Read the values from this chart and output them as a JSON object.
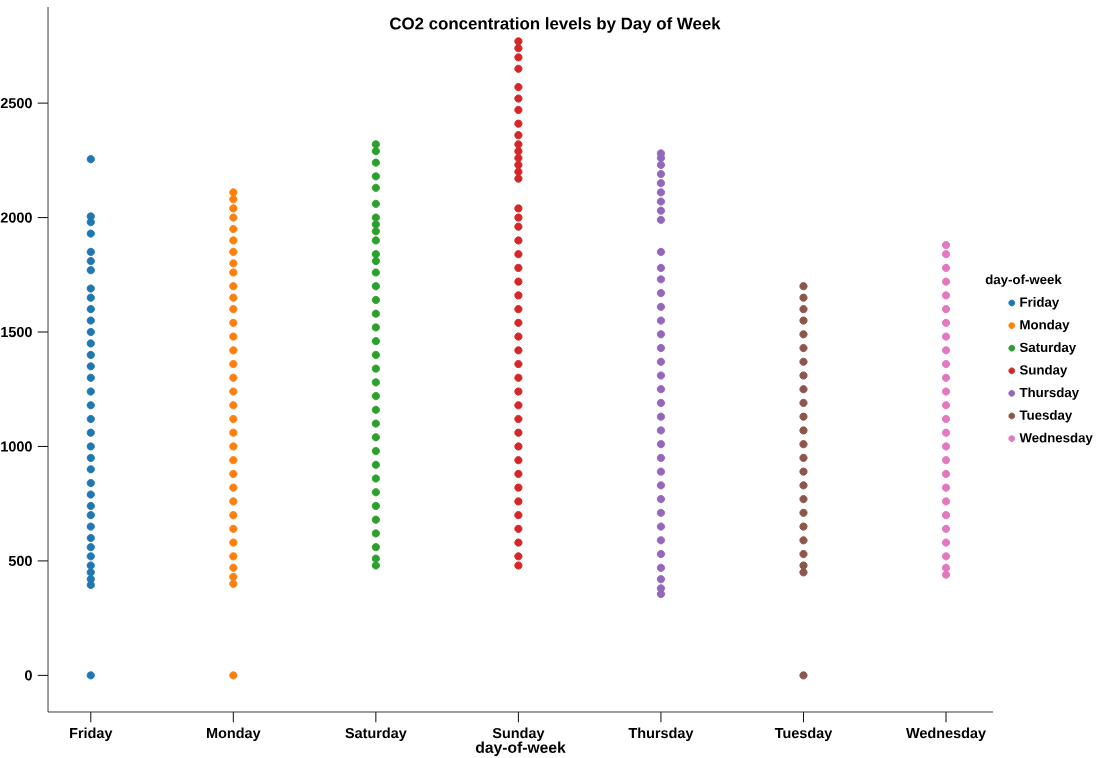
{
  "chart_data": {
    "type": "scatter",
    "title": "CO2 concentration levels by Day of Week",
    "xlabel": "day-of-week",
    "legend_title": "day-of-week",
    "categories": [
      "Friday",
      "Monday",
      "Saturday",
      "Sunday",
      "Thursday",
      "Tuesday",
      "Wednesday"
    ],
    "ylim": [
      -160,
      2920
    ],
    "yticks": [
      0,
      500,
      1000,
      1500,
      2000,
      2500
    ],
    "grid": false,
    "legend": "right",
    "marker": "circle",
    "series": [
      {
        "name": "Friday",
        "color": "#1f77b4",
        "x": [
          "Friday",
          "Friday",
          "Friday",
          "Friday",
          "Friday",
          "Friday",
          "Friday",
          "Friday",
          "Friday",
          "Friday",
          "Friday",
          "Friday",
          "Friday",
          "Friday",
          "Friday",
          "Friday",
          "Friday",
          "Friday",
          "Friday",
          "Friday",
          "Friday",
          "Friday",
          "Friday",
          "Friday",
          "Friday",
          "Friday",
          "Friday",
          "Friday",
          "Friday",
          "Friday",
          "Friday",
          "Friday",
          "Friday",
          "Friday",
          "Friday",
          "Friday"
        ],
        "values": [
          0,
          395,
          420,
          450,
          480,
          520,
          560,
          600,
          650,
          700,
          740,
          790,
          840,
          900,
          950,
          1000,
          1060,
          1120,
          1180,
          1240,
          1300,
          1350,
          1400,
          1450,
          1500,
          1550,
          1600,
          1650,
          1690,
          1770,
          1810,
          1850,
          1930,
          1980,
          2005,
          2255
        ]
      },
      {
        "name": "Monday",
        "color": "#ff7f0e",
        "x": [
          "Monday",
          "Monday",
          "Monday",
          "Monday",
          "Monday",
          "Monday",
          "Monday",
          "Monday",
          "Monday",
          "Monday",
          "Monday",
          "Monday",
          "Monday",
          "Monday",
          "Monday",
          "Monday",
          "Monday",
          "Monday",
          "Monday",
          "Monday",
          "Monday",
          "Monday",
          "Monday",
          "Monday",
          "Monday",
          "Monday",
          "Monday",
          "Monday",
          "Monday",
          "Monday",
          "Monday",
          "Monday",
          "Monday",
          "Monday"
        ],
        "values": [
          0,
          400,
          430,
          470,
          520,
          580,
          640,
          700,
          760,
          820,
          880,
          940,
          1000,
          1060,
          1120,
          1180,
          1240,
          1300,
          1360,
          1420,
          1480,
          1540,
          1600,
          1650,
          1700,
          1760,
          1800,
          1850,
          1900,
          1950,
          2000,
          2040,
          2080,
          2110
        ]
      },
      {
        "name": "Saturday",
        "color": "#2ca02c",
        "x": [
          "Saturday",
          "Saturday",
          "Saturday",
          "Saturday",
          "Saturday",
          "Saturday",
          "Saturday",
          "Saturday",
          "Saturday",
          "Saturday",
          "Saturday",
          "Saturday",
          "Saturday",
          "Saturday",
          "Saturday",
          "Saturday",
          "Saturday",
          "Saturday",
          "Saturday",
          "Saturday",
          "Saturday",
          "Saturday",
          "Saturday",
          "Saturday",
          "Saturday",
          "Saturday",
          "Saturday",
          "Saturday",
          "Saturday",
          "Saturday",
          "Saturday",
          "Saturday",
          "Saturday",
          "Saturday",
          "Saturday"
        ],
        "values": [
          480,
          510,
          560,
          620,
          680,
          740,
          800,
          860,
          920,
          980,
          1040,
          1100,
          1160,
          1220,
          1280,
          1340,
          1400,
          1460,
          1520,
          1580,
          1640,
          1700,
          1760,
          1810,
          1840,
          1900,
          1940,
          1970,
          2000,
          2060,
          2130,
          2180,
          2240,
          2290,
          2320
        ]
      },
      {
        "name": "Sunday",
        "color": "#d62728",
        "x": [
          "Sunday",
          "Sunday",
          "Sunday",
          "Sunday",
          "Sunday",
          "Sunday",
          "Sunday",
          "Sunday",
          "Sunday",
          "Sunday",
          "Sunday",
          "Sunday",
          "Sunday",
          "Sunday",
          "Sunday",
          "Sunday",
          "Sunday",
          "Sunday",
          "Sunday",
          "Sunday",
          "Sunday",
          "Sunday",
          "Sunday",
          "Sunday",
          "Sunday",
          "Sunday",
          "Sunday",
          "Sunday",
          "Sunday",
          "Sunday",
          "Sunday",
          "Sunday",
          "Sunday",
          "Sunday",
          "Sunday",
          "Sunday",
          "Sunday",
          "Sunday",
          "Sunday",
          "Sunday",
          "Sunday",
          "Sunday",
          "Sunday"
        ],
        "values": [
          480,
          520,
          580,
          640,
          700,
          760,
          820,
          880,
          940,
          1000,
          1060,
          1120,
          1180,
          1240,
          1300,
          1360,
          1420,
          1480,
          1540,
          1600,
          1660,
          1720,
          1780,
          1840,
          1900,
          1960,
          2000,
          2040,
          2170,
          2200,
          2230,
          2260,
          2290,
          2320,
          2360,
          2410,
          2470,
          2520,
          2570,
          2650,
          2700,
          2740,
          2770
        ]
      },
      {
        "name": "Thursday",
        "color": "#9467bd",
        "x": [
          "Thursday",
          "Thursday",
          "Thursday",
          "Thursday",
          "Thursday",
          "Thursday",
          "Thursday",
          "Thursday",
          "Thursday",
          "Thursday",
          "Thursday",
          "Thursday",
          "Thursday",
          "Thursday",
          "Thursday",
          "Thursday",
          "Thursday",
          "Thursday",
          "Thursday",
          "Thursday",
          "Thursday",
          "Thursday",
          "Thursday",
          "Thursday",
          "Thursday",
          "Thursday",
          "Thursday",
          "Thursday",
          "Thursday",
          "Thursday",
          "Thursday",
          "Thursday",
          "Thursday",
          "Thursday",
          "Thursday",
          "Thursday"
        ],
        "values": [
          355,
          380,
          420,
          470,
          530,
          590,
          650,
          710,
          770,
          830,
          890,
          950,
          1010,
          1070,
          1130,
          1190,
          1250,
          1310,
          1370,
          1430,
          1490,
          1550,
          1610,
          1670,
          1730,
          1780,
          1850,
          1990,
          2030,
          2070,
          2110,
          2150,
          2190,
          2230,
          2260,
          2280
        ]
      },
      {
        "name": "Tuesday",
        "color": "#8c564b",
        "x": [
          "Tuesday",
          "Tuesday",
          "Tuesday",
          "Tuesday",
          "Tuesday",
          "Tuesday",
          "Tuesday",
          "Tuesday",
          "Tuesday",
          "Tuesday",
          "Tuesday",
          "Tuesday",
          "Tuesday",
          "Tuesday",
          "Tuesday",
          "Tuesday",
          "Tuesday",
          "Tuesday",
          "Tuesday",
          "Tuesday",
          "Tuesday",
          "Tuesday",
          "Tuesday",
          "Tuesday"
        ],
        "values": [
          0,
          450,
          480,
          530,
          590,
          650,
          710,
          770,
          830,
          890,
          950,
          1010,
          1070,
          1130,
          1190,
          1250,
          1310,
          1370,
          1430,
          1490,
          1550,
          1600,
          1650,
          1700
        ]
      },
      {
        "name": "Wednesday",
        "color": "#e377c2",
        "x": [
          "Wednesday",
          "Wednesday",
          "Wednesday",
          "Wednesday",
          "Wednesday",
          "Wednesday",
          "Wednesday",
          "Wednesday",
          "Wednesday",
          "Wednesday",
          "Wednesday",
          "Wednesday",
          "Wednesday",
          "Wednesday",
          "Wednesday",
          "Wednesday",
          "Wednesday",
          "Wednesday",
          "Wednesday",
          "Wednesday",
          "Wednesday",
          "Wednesday",
          "Wednesday",
          "Wednesday",
          "Wednesday",
          "Wednesday"
        ],
        "values": [
          440,
          470,
          520,
          580,
          640,
          700,
          760,
          820,
          880,
          940,
          1000,
          1060,
          1120,
          1180,
          1240,
          1300,
          1360,
          1420,
          1480,
          1540,
          1600,
          1660,
          1720,
          1780,
          1840,
          1880
        ]
      }
    ]
  }
}
